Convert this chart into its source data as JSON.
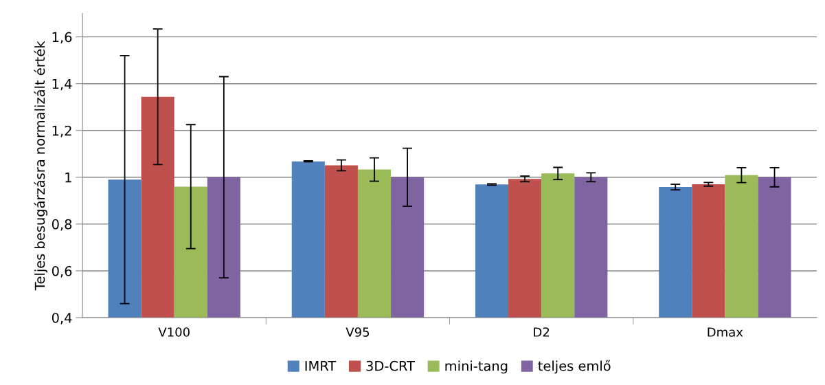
{
  "chart_data": {
    "type": "bar",
    "ylabel": "Teljes besugárzásra normalizált érték",
    "categories": [
      "V100",
      "V95",
      "D2",
      "Dmax"
    ],
    "series": [
      {
        "name": "IMRT",
        "color": "#4f81bd",
        "values": [
          0.99,
          1.068,
          0.969,
          0.958
        ],
        "errors": [
          0.53,
          0.002,
          0.003,
          0.012
        ]
      },
      {
        "name": "3D-CRT",
        "color": "#c0504d",
        "values": [
          1.344,
          1.051,
          0.993,
          0.97
        ],
        "errors": [
          0.29,
          0.023,
          0.012,
          0.008
        ]
      },
      {
        "name": "mini-tang",
        "color": "#9bbb59",
        "values": [
          0.96,
          1.033,
          1.016,
          1.009
        ],
        "errors": [
          0.265,
          0.05,
          0.026,
          0.032
        ]
      },
      {
        "name": "teljes emlő",
        "color": "#8064a2",
        "values": [
          1.0,
          1.0,
          1.0,
          1.0
        ],
        "errors": [
          0.43,
          0.124,
          0.019,
          0.041
        ]
      }
    ],
    "ylim": [
      0.4,
      1.7
    ],
    "yticks": [
      {
        "value": 0.4,
        "label": "0,4"
      },
      {
        "value": 0.6,
        "label": "0,6"
      },
      {
        "value": 0.8,
        "label": "0,8"
      },
      {
        "value": 1,
        "label": "1"
      },
      {
        "value": 1.2,
        "label": "1,2"
      },
      {
        "value": 1.4,
        "label": "1,4"
      },
      {
        "value": 1.6,
        "label": "1,6"
      }
    ],
    "grid": "y",
    "legend": "bottom"
  }
}
